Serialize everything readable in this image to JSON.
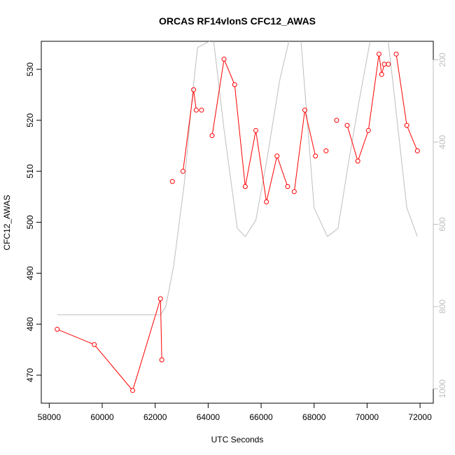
{
  "chart_data": {
    "type": "line",
    "title": "ORCAS RF14vlonS CFC12_AWAS",
    "xlabel": "UTC Seconds",
    "ylabel": "CFC12_AWAS",
    "xlim": [
      57700,
      72500
    ],
    "ylim": [
      464.5,
      535.5
    ],
    "x_ticks": [
      58000,
      60000,
      62000,
      64000,
      66000,
      68000,
      70000,
      72000
    ],
    "y_ticks": [
      470,
      480,
      490,
      500,
      510,
      520,
      530
    ],
    "y2_lim": [
      1035,
      155
    ],
    "y2_ticks": [
      200,
      400,
      600,
      800,
      1000
    ],
    "y2_reversed": true,
    "grid": false,
    "colors": {
      "cfc12": "#ff0000",
      "secondary": "#bebebe",
      "axis": "#000000"
    },
    "series": [
      {
        "id": "cfc12",
        "axis": "left",
        "marker": "open-circle",
        "x": [
          58300,
          59700,
          61150,
          62200,
          62250,
          62650,
          63050,
          63450,
          63550,
          63750,
          64150,
          64600,
          65000,
          65400,
          65800,
          66200,
          66600,
          67000,
          67250,
          67650,
          68050,
          68450,
          68850,
          69250,
          69650,
          70050,
          70450,
          70550,
          70650,
          70800,
          71100,
          71500,
          71900
        ],
        "y": [
          479,
          476,
          467,
          485,
          473,
          508,
          510,
          526,
          522,
          522,
          517,
          532,
          527,
          507,
          518,
          504,
          513,
          507,
          506,
          522,
          513,
          514,
          520,
          519,
          512,
          518,
          533,
          529,
          531,
          531,
          533,
          519,
          514
        ],
        "gaps_after": [
          4,
          5,
          8,
          9,
          17,
          20,
          21,
          22,
          28,
          29
        ]
      },
      {
        "id": "secondary",
        "axis": "right",
        "marker": "none",
        "x": [
          58300,
          62200,
          62400,
          62700,
          63100,
          63400,
          63600,
          64200,
          64600,
          65100,
          65400,
          65800,
          66200,
          66700,
          67100,
          67500,
          68000,
          68500,
          68900,
          69300,
          69700,
          70100,
          70400,
          70700,
          71000,
          71500,
          71900
        ],
        "y": [
          820,
          820,
          800,
          700,
          500,
          290,
          170,
          150,
          370,
          610,
          630,
          590,
          450,
          250,
          140,
          150,
          560,
          630,
          610,
          450,
          300,
          160,
          90,
          100,
          270,
          560,
          630
        ]
      }
    ]
  }
}
